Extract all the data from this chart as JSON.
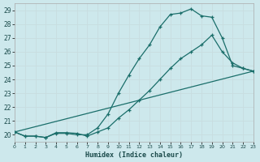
{
  "xlabel": "Humidex (Indice chaleur)",
  "xlim": [
    0,
    23
  ],
  "ylim": [
    19.5,
    29.5
  ],
  "xticks": [
    0,
    1,
    2,
    3,
    4,
    5,
    6,
    7,
    8,
    9,
    10,
    11,
    12,
    13,
    14,
    15,
    16,
    17,
    18,
    19,
    20,
    21,
    22,
    23
  ],
  "yticks": [
    20,
    21,
    22,
    23,
    24,
    25,
    26,
    27,
    28,
    29
  ],
  "bg_color": "#cde8ec",
  "grid_color": "#b8d8dc",
  "line_color": "#1a6e6a",
  "line1_x": [
    0,
    1,
    2,
    3,
    4,
    5,
    6,
    7,
    8,
    9,
    10,
    11,
    12,
    13,
    14,
    15,
    16,
    17,
    18,
    19,
    20,
    21,
    22,
    23
  ],
  "line1_y": [
    20.2,
    19.9,
    19.9,
    19.8,
    20.1,
    20.1,
    20.0,
    20.0,
    20.5,
    21.5,
    23.0,
    24.3,
    25.5,
    26.5,
    27.8,
    28.7,
    28.8,
    29.1,
    28.6,
    28.5,
    27.0,
    25.0,
    24.8,
    24.6
  ],
  "line2_x": [
    0,
    1,
    2,
    3,
    4,
    5,
    6,
    7,
    8,
    9,
    10,
    11,
    12,
    13,
    14,
    15,
    16,
    17,
    18,
    19,
    20,
    21,
    22,
    23
  ],
  "line2_y": [
    20.2,
    19.9,
    19.9,
    19.8,
    20.15,
    20.15,
    20.1,
    19.9,
    20.2,
    20.5,
    21.2,
    21.8,
    22.5,
    23.2,
    24.0,
    24.8,
    25.5,
    26.0,
    26.5,
    27.2,
    26.0,
    25.2,
    24.8,
    24.6
  ],
  "line3_x": [
    0,
    23
  ],
  "line3_y": [
    20.2,
    24.6
  ]
}
